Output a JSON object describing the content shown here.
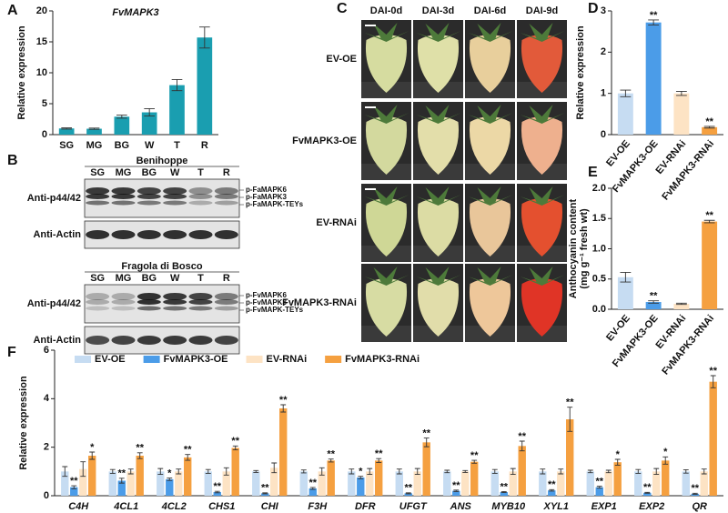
{
  "panel_labels": [
    "A",
    "B",
    "C",
    "D",
    "E",
    "F"
  ],
  "blots": [
    {
      "title": "Benihoppe",
      "lanes": [
        "SG",
        "MG",
        "BG",
        "W",
        "T",
        "R"
      ],
      "rows": [
        "Anti-p44/42",
        "Anti-Actin"
      ],
      "bands": [
        "p-FaMAPK6",
        "p-FaMAPK3",
        "p-FaMAPK-TEYs"
      ]
    },
    {
      "title": "Fragola di Bosco",
      "lanes": [
        "SG",
        "MG",
        "BG",
        "W",
        "T",
        "R"
      ],
      "rows": [
        "Anti-p44/42",
        "Anti-Actin"
      ],
      "bands": [
        "p-FvMAPK6",
        "p-FvMAPK3",
        "p-FvMAPK-TEYs"
      ]
    }
  ],
  "photos": {
    "columns": [
      "DAI-0d",
      "DAI-3d",
      "DAI-6d",
      "DAI-9d"
    ],
    "rows": [
      "EV-OE",
      "FvMAPK3-OE",
      "EV-RNAi",
      "FvMAPK3-RNAi"
    ]
  },
  "chart_data": [
    {
      "type": "bar",
      "title": "FvMAPK3",
      "ylabel": "Relative expression",
      "categories": [
        "SG",
        "MG",
        "BG",
        "W",
        "T",
        "R"
      ],
      "values": [
        1.0,
        0.95,
        2.9,
        3.6,
        8.0,
        15.7
      ],
      "errors": [
        0.1,
        0.1,
        0.25,
        0.6,
        0.9,
        1.7
      ],
      "color": "#1a9eb0",
      "ylim": [
        0,
        20
      ],
      "yticks": [
        0,
        5,
        10,
        15,
        20
      ]
    },
    {
      "type": "bar",
      "ylabel": "Relative expression",
      "categories": [
        "EV-OE",
        "FvMAPK3-OE",
        "EV-RNAi",
        "FvMAPK3-RNAi"
      ],
      "values": [
        1.0,
        2.72,
        1.0,
        0.18
      ],
      "errors": [
        0.08,
        0.06,
        0.05,
        0.02
      ],
      "colors": [
        "#c6dcf2",
        "#4b9ce8",
        "#fde3c4",
        "#f5a040"
      ],
      "sig": [
        null,
        "**",
        null,
        "**"
      ],
      "ylim": [
        0,
        3
      ],
      "yticks": [
        0,
        1,
        2,
        3
      ]
    },
    {
      "type": "bar",
      "ylabel": [
        "Anthocyanin content",
        "(mg g⁻¹ fresh wt)"
      ],
      "categories": [
        "EV-OE",
        "FvMAPK3-OE",
        "EV-RNAi",
        "FvMAPK3-RNAi"
      ],
      "values": [
        0.53,
        0.12,
        0.09,
        1.45
      ],
      "errors": [
        0.08,
        0.02,
        0.01,
        0.02
      ],
      "colors": [
        "#c6dcf2",
        "#4b9ce8",
        "#fde3c4",
        "#f5a040"
      ],
      "sig": [
        null,
        "**",
        null,
        "**"
      ],
      "ylim": [
        0,
        2
      ],
      "yticks": [
        {
          "value": 0,
          "label": "0.0"
        },
        0.5,
        {
          "value": 1,
          "label": "1.0"
        },
        1.5,
        {
          "value": 2,
          "label": "2.0"
        }
      ]
    },
    {
      "type": "bar",
      "ylabel": "Relative expression",
      "categories": [
        "C4H",
        "4CL1",
        "4CL2",
        "CHS1",
        "CHI",
        "F3H",
        "DFR",
        "UFGT",
        "ANS",
        "MYB10",
        "XYL1",
        "EXP1",
        "EXP2",
        "QR"
      ],
      "series": [
        {
          "name": "EV-OE",
          "color": "#c6dcf2",
          "values": [
            1.0,
            1.0,
            1.0,
            1.0,
            1.0,
            1.0,
            1.0,
            1.0,
            1.0,
            1.0,
            1.0,
            1.0,
            1.0,
            1.0
          ],
          "errors": [
            0.2,
            0.08,
            0.12,
            0.08,
            0.04,
            0.06,
            0.1,
            0.1,
            0.05,
            0.08,
            0.1,
            0.05,
            0.08,
            0.07
          ]
        },
        {
          "name": "FvMAPK3-OE",
          "color": "#4b9ce8",
          "values": [
            0.35,
            0.62,
            0.68,
            0.15,
            0.1,
            0.3,
            0.75,
            0.1,
            0.2,
            0.15,
            0.22,
            0.35,
            0.12,
            0.08
          ],
          "errors": [
            0.06,
            0.1,
            0.05,
            0.03,
            0.02,
            0.04,
            0.05,
            0.02,
            0.03,
            0.02,
            0.03,
            0.04,
            0.02,
            0.02
          ],
          "sig": [
            "**",
            "**",
            "*",
            "**",
            "**",
            "**",
            "*",
            "**",
            "**",
            "**",
            "**",
            "**",
            "**",
            "**"
          ]
        },
        {
          "name": "EV-RNAi",
          "color": "#fde3c4",
          "values": [
            1.1,
            1.0,
            1.0,
            1.0,
            1.15,
            1.0,
            1.0,
            1.0,
            1.0,
            1.0,
            1.0,
            1.0,
            1.0,
            1.0
          ],
          "errors": [
            0.3,
            0.1,
            0.1,
            0.15,
            0.2,
            0.15,
            0.12,
            0.12,
            0.04,
            0.12,
            0.1,
            0.05,
            0.12,
            0.1
          ]
        },
        {
          "name": "FvMAPK3-RNAi",
          "color": "#f5a040",
          "values": [
            1.65,
            1.65,
            1.58,
            1.97,
            3.6,
            1.45,
            1.45,
            2.2,
            1.4,
            2.05,
            3.15,
            1.38,
            1.45,
            4.7
          ],
          "errors": [
            0.15,
            0.12,
            0.12,
            0.08,
            0.15,
            0.06,
            0.08,
            0.18,
            0.06,
            0.2,
            0.5,
            0.12,
            0.15,
            0.25
          ],
          "sig": [
            "*",
            "**",
            "**",
            "**",
            "**",
            "**",
            "**",
            "**",
            "**",
            "**",
            "**",
            "*",
            "*",
            "**"
          ]
        }
      ],
      "ylim": [
        0,
        6
      ],
      "yticks": [
        0,
        2,
        4,
        6
      ]
    }
  ]
}
